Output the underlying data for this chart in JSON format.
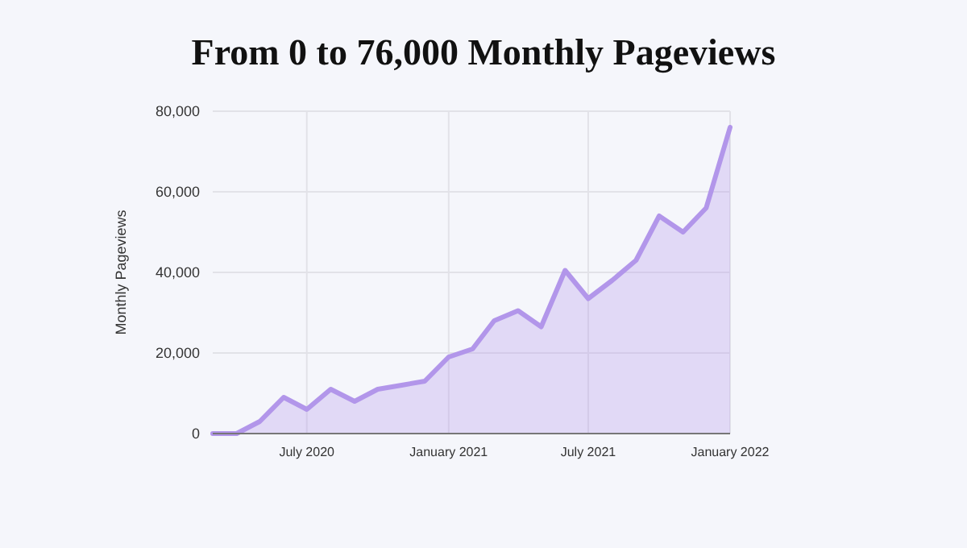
{
  "chart_data": {
    "type": "area",
    "title": "From 0 to 76,000 Monthly Pageviews",
    "ylabel": "Monthly Pageviews",
    "x": [
      "2020-03",
      "2020-04",
      "2020-05",
      "2020-06",
      "2020-07",
      "2020-08",
      "2020-09",
      "2020-10",
      "2020-11",
      "2020-12",
      "2021-01",
      "2021-02",
      "2021-03",
      "2021-04",
      "2021-05",
      "2021-06",
      "2021-07",
      "2021-08",
      "2021-09",
      "2021-10",
      "2021-11",
      "2021-12",
      "2022-01"
    ],
    "series": [
      {
        "color": "#b296ea",
        "values": [
          0,
          0,
          3000,
          9000,
          6000,
          11000,
          8000,
          11000,
          12000,
          13000,
          19000,
          21000,
          28000,
          30500,
          26500,
          40500,
          33500,
          38000,
          43000,
          54000,
          50000,
          56000,
          76000
        ]
      }
    ],
    "xlim": [
      "2020-03",
      "2022-01"
    ],
    "xticks": [
      {
        "value": "2020-07",
        "label": "July 2020"
      },
      {
        "value": "2021-01",
        "label": "January 2021"
      },
      {
        "value": "2021-07",
        "label": "July 2021"
      },
      {
        "value": "2022-01",
        "label": "January 2022"
      }
    ],
    "ylim": [
      0,
      80000
    ],
    "yticks": [
      {
        "value": 0,
        "label": "0"
      },
      {
        "value": 20000,
        "label": "20,000"
      },
      {
        "value": 40000,
        "label": "40,000"
      },
      {
        "value": 60000,
        "label": "60,000"
      },
      {
        "value": 80000,
        "label": "80,000"
      }
    ],
    "grid": true
  }
}
